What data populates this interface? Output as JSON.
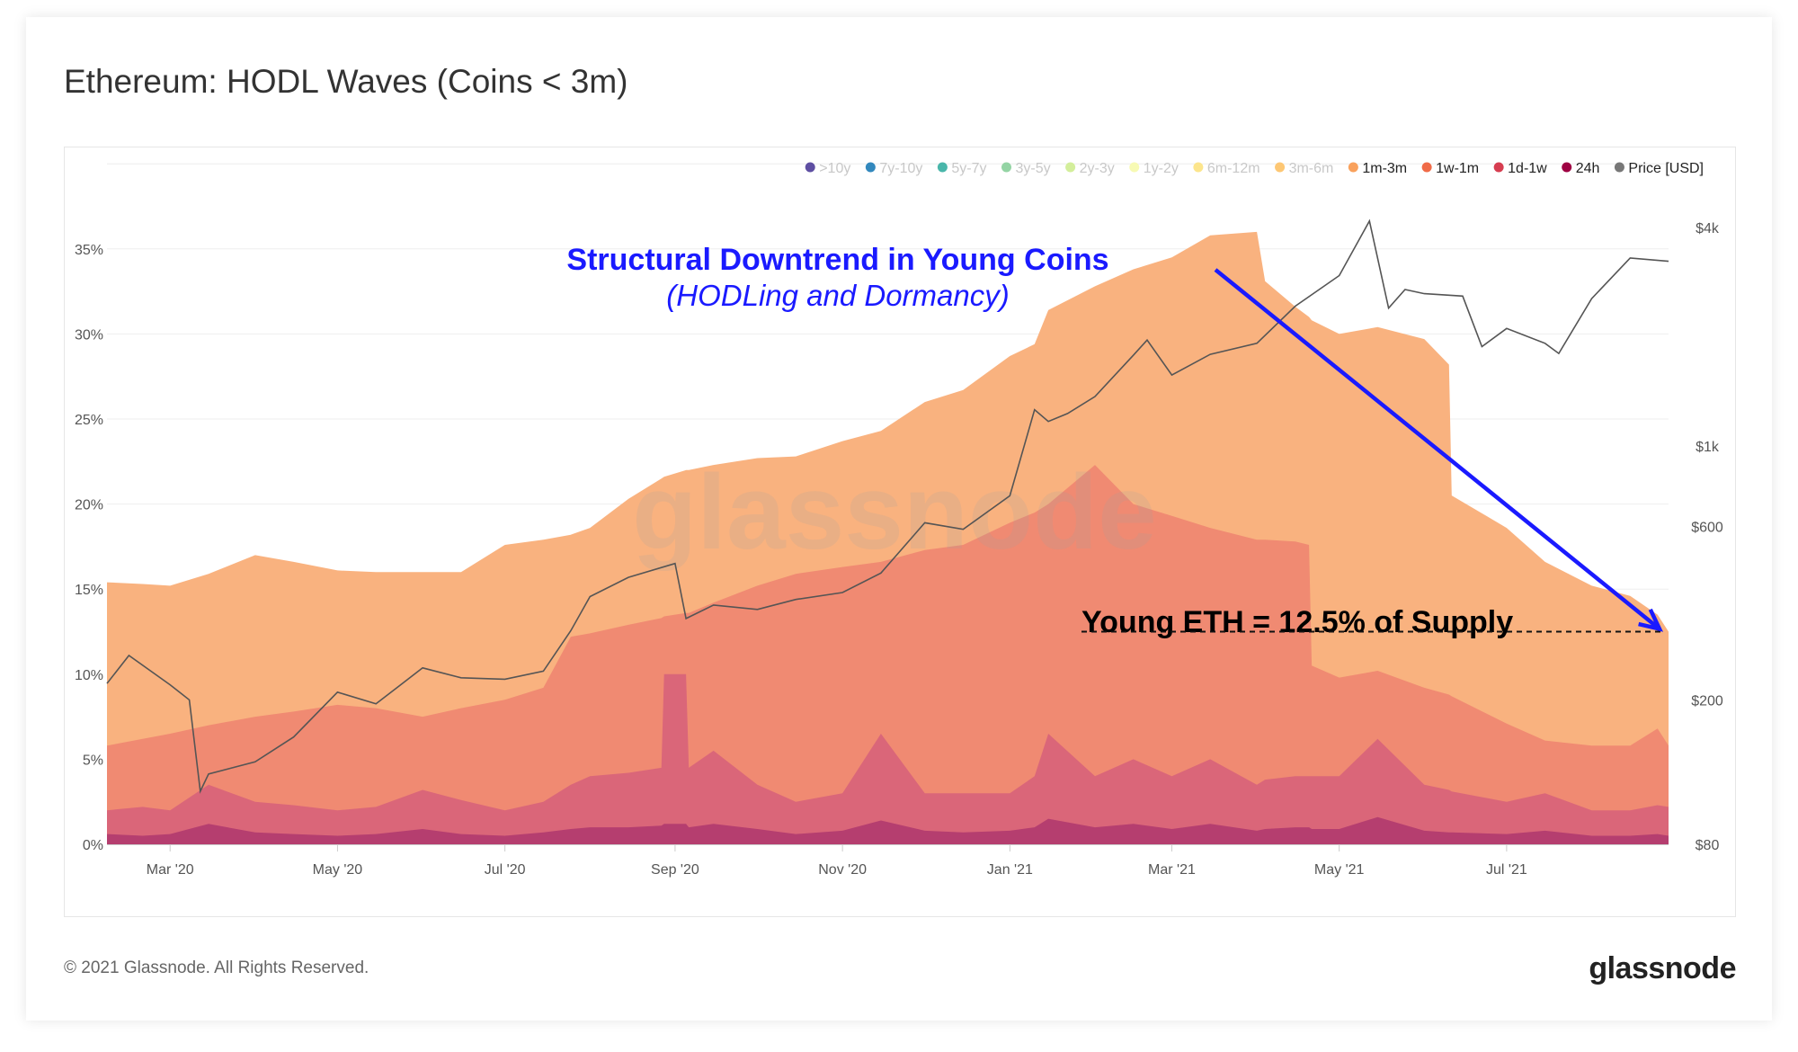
{
  "page": {
    "title": "Ethereum: HODL Waves (Coins < 3m)",
    "footer": "© 2021 Glassnode. All Rights Reserved.",
    "logo": "glassnode",
    "watermark": "glassnode"
  },
  "chart_data": {
    "type": "area",
    "stacked": true,
    "title": "Ethereum: HODL Waves (Coins < 3m)",
    "legend": [
      {
        "name": ">10y",
        "color": "#5e4fa2",
        "active": false
      },
      {
        "name": "7y-10y",
        "color": "#3288bd",
        "active": false
      },
      {
        "name": "5y-7y",
        "color": "#49b6aa",
        "active": false
      },
      {
        "name": "3y-5y",
        "color": "#94d4a4",
        "active": false
      },
      {
        "name": "2y-3y",
        "color": "#d3ee9b",
        "active": false
      },
      {
        "name": "1y-2y",
        "color": "#f7fab4",
        "active": false
      },
      {
        "name": "6m-12m",
        "color": "#fce58c",
        "active": false
      },
      {
        "name": "3m-6m",
        "color": "#fdc774",
        "active": false
      },
      {
        "name": "1m-3m",
        "color": "#f9a15c",
        "active": true
      },
      {
        "name": "1w-1m",
        "color": "#f06b48",
        "active": true
      },
      {
        "name": "1d-1w",
        "color": "#d63d50",
        "active": true
      },
      {
        "name": "24h",
        "color": "#9e0142",
        "active": true
      },
      {
        "name": "Price [USD]",
        "color": "#777777",
        "active": true
      }
    ],
    "legend_position": "top-right",
    "grid": true,
    "y_left": {
      "range": [
        0,
        40
      ],
      "ticks": [
        "0%",
        "5%",
        "10%",
        "15%",
        "20%",
        "25%",
        "30%",
        "35%"
      ],
      "tick_values": [
        0,
        5,
        10,
        15,
        20,
        25,
        30,
        35
      ]
    },
    "y_right": {
      "scale": "log",
      "range": [
        80,
        4700
      ],
      "ticks": [
        "$80",
        "$200",
        "$600",
        "$1k",
        "$4k"
      ],
      "tick_values": [
        80,
        200,
        600,
        1000,
        4000
      ]
    },
    "x_ticks": [
      {
        "label": "Mar '20",
        "date": "2020-03-01"
      },
      {
        "label": "May '20",
        "date": "2020-05-01"
      },
      {
        "label": "Jul '20",
        "date": "2020-07-01"
      },
      {
        "label": "Sep '20",
        "date": "2020-09-01"
      },
      {
        "label": "Nov '20",
        "date": "2020-11-01"
      },
      {
        "label": "Jan '21",
        "date": "2021-01-01"
      },
      {
        "label": "Mar '21",
        "date": "2021-03-01"
      },
      {
        "label": "May '21",
        "date": "2021-05-01"
      },
      {
        "label": "Jul '21",
        "date": "2021-07-01"
      }
    ],
    "x_range": [
      "2020-02-07",
      "2021-08-29"
    ],
    "dates": [
      "2020-02-07",
      "2020-02-20",
      "2020-03-01",
      "2020-03-15",
      "2020-04-01",
      "2020-04-15",
      "2020-05-01",
      "2020-05-15",
      "2020-06-01",
      "2020-06-15",
      "2020-07-01",
      "2020-07-15",
      "2020-07-25",
      "2020-08-01",
      "2020-08-15",
      "2020-08-27",
      "2020-08-28",
      "2020-09-05",
      "2020-09-06",
      "2020-09-15",
      "2020-10-01",
      "2020-10-15",
      "2020-11-01",
      "2020-11-15",
      "2020-12-01",
      "2020-12-15",
      "2021-01-01",
      "2021-01-10",
      "2021-01-15",
      "2021-02-01",
      "2021-02-15",
      "2021-03-01",
      "2021-03-15",
      "2021-04-01",
      "2021-04-04",
      "2021-04-15",
      "2021-04-20",
      "2021-04-21",
      "2021-05-01",
      "2021-05-15",
      "2021-06-01",
      "2021-06-10",
      "2021-06-11",
      "2021-07-01",
      "2021-07-15",
      "2021-08-01",
      "2021-08-15",
      "2021-08-25",
      "2021-08-29"
    ],
    "series": [
      {
        "name": "24h",
        "color": "#b53e6f",
        "values": [
          0.6,
          0.5,
          0.6,
          1.2,
          0.7,
          0.6,
          0.5,
          0.6,
          0.9,
          0.6,
          0.5,
          0.7,
          0.9,
          1.0,
          1.0,
          1.1,
          1.2,
          1.2,
          1.0,
          1.2,
          0.9,
          0.6,
          0.8,
          1.4,
          0.8,
          0.7,
          0.8,
          1.0,
          1.5,
          1.0,
          1.2,
          0.9,
          1.2,
          0.8,
          0.9,
          1.0,
          1.0,
          0.9,
          0.9,
          1.6,
          0.8,
          0.7,
          0.7,
          0.6,
          0.8,
          0.5,
          0.5,
          0.6,
          0.5
        ]
      },
      {
        "name": "1d-1w",
        "color": "#da6679",
        "values": [
          1.4,
          1.7,
          1.4,
          2.3,
          1.8,
          1.7,
          1.5,
          1.6,
          2.3,
          2.0,
          1.5,
          1.8,
          2.6,
          3.0,
          3.2,
          3.4,
          8.8,
          8.8,
          3.5,
          4.3,
          2.6,
          1.9,
          2.2,
          5.1,
          2.2,
          2.3,
          2.2,
          3.0,
          5.0,
          3.0,
          3.8,
          3.1,
          3.8,
          2.7,
          2.9,
          3.0,
          3.0,
          3.1,
          3.1,
          4.6,
          2.7,
          2.5,
          2.4,
          1.9,
          2.2,
          1.5,
          1.5,
          1.7,
          1.7
        ]
      },
      {
        "name": "1w-1m",
        "color": "#f08a72",
        "values": [
          3.8,
          4.0,
          4.5,
          3.5,
          5.0,
          5.5,
          6.2,
          5.8,
          4.3,
          5.4,
          6.5,
          6.7,
          8.7,
          8.4,
          8.7,
          8.8,
          3.4,
          3.6,
          9.1,
          8.7,
          11.7,
          13.4,
          13.3,
          10.1,
          14.3,
          14.6,
          15.9,
          15.5,
          13.5,
          18.3,
          15.0,
          15.3,
          13.6,
          14.4,
          14.1,
          13.8,
          13.6,
          6.5,
          5.8,
          4.0,
          5.7,
          5.6,
          5.6,
          4.6,
          3.1,
          3.8,
          3.8,
          4.5,
          3.6
        ]
      },
      {
        "name": "1m-3m",
        "color": "#f9b27f",
        "values": [
          9.6,
          9.1,
          8.7,
          8.9,
          9.5,
          8.8,
          7.9,
          8.0,
          8.5,
          8.0,
          9.1,
          8.7,
          6.0,
          6.2,
          7.4,
          8.2,
          8.2,
          8.4,
          8.4,
          8.1,
          7.5,
          6.9,
          7.4,
          7.7,
          8.7,
          9.1,
          9.8,
          9.9,
          11.4,
          10.5,
          13.8,
          15.2,
          17.2,
          18.1,
          15.2,
          13.8,
          13.4,
          20.3,
          20.2,
          20.2,
          20.5,
          19.4,
          11.8,
          11.5,
          10.5,
          9.4,
          8.8,
          6.7,
          6.7
        ]
      }
    ],
    "price": {
      "name": "Price [USD]",
      "color": "#555555",
      "dates": [
        "2020-02-07",
        "2020-02-15",
        "2020-03-01",
        "2020-03-08",
        "2020-03-12",
        "2020-03-15",
        "2020-04-01",
        "2020-04-15",
        "2020-05-01",
        "2020-05-15",
        "2020-06-01",
        "2020-06-15",
        "2020-07-01",
        "2020-07-15",
        "2020-07-25",
        "2020-08-01",
        "2020-08-15",
        "2020-09-01",
        "2020-09-05",
        "2020-09-15",
        "2020-10-01",
        "2020-10-15",
        "2020-11-01",
        "2020-11-15",
        "2020-12-01",
        "2020-12-15",
        "2021-01-01",
        "2021-01-10",
        "2021-01-15",
        "2021-01-22",
        "2021-02-01",
        "2021-02-15",
        "2021-02-20",
        "2021-03-01",
        "2021-03-15",
        "2021-04-01",
        "2021-04-15",
        "2021-05-01",
        "2021-05-12",
        "2021-05-19",
        "2021-05-25",
        "2021-06-01",
        "2021-06-15",
        "2021-06-22",
        "2021-07-01",
        "2021-07-15",
        "2021-07-20",
        "2021-08-01",
        "2021-08-15",
        "2021-08-29"
      ],
      "values": [
        222,
        265,
        220,
        200,
        112,
        125,
        135,
        158,
        210,
        195,
        245,
        230,
        228,
        240,
        310,
        385,
        435,
        475,
        335,
        365,
        355,
        378,
        395,
        447,
        615,
        590,
        730,
        1260,
        1170,
        1230,
        1370,
        1780,
        1960,
        1570,
        1790,
        1920,
        2430,
        2950,
        4170,
        2400,
        2700,
        2630,
        2590,
        1880,
        2110,
        1920,
        1800,
        2550,
        3300,
        3230
      ]
    },
    "annotations": [
      {
        "text": "Structural Downtrend in Young Coins",
        "color": "#1a1aff"
      },
      {
        "text": "(HODLing and Dormancy)",
        "color": "#1a1aff"
      },
      {
        "text": "Young ETH = 12.5% of Supply",
        "color": "#000000",
        "value_pct": 12.5
      },
      {
        "type": "arrow",
        "color": "#1a1aff",
        "from_date": "2021-03-15",
        "from_pct": 34.5,
        "to_date": "2021-08-29",
        "to_pct": 12.5
      }
    ]
  }
}
